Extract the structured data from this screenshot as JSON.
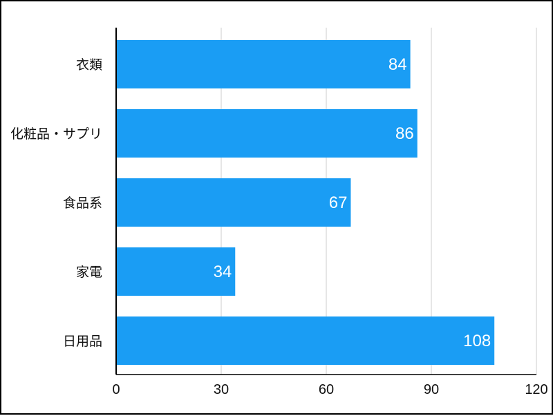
{
  "chart_data": {
    "type": "bar",
    "orientation": "horizontal",
    "categories": [
      "衣類",
      "化粧品・サプリ",
      "食品系",
      "家電",
      "日用品"
    ],
    "values": [
      84,
      86,
      67,
      34,
      108
    ],
    "value_labels": [
      "84",
      "86",
      "67",
      "34",
      "108"
    ],
    "xlim": [
      0,
      120
    ],
    "x_ticks": [
      0,
      30,
      60,
      90,
      120
    ],
    "x_tick_labels": [
      "0",
      "30",
      "60",
      "90",
      "120"
    ],
    "grid": "vertical",
    "legend": "none",
    "bar_color": "#1a9df4",
    "grid_color": "#cccccc",
    "axis_color": "#000000"
  }
}
